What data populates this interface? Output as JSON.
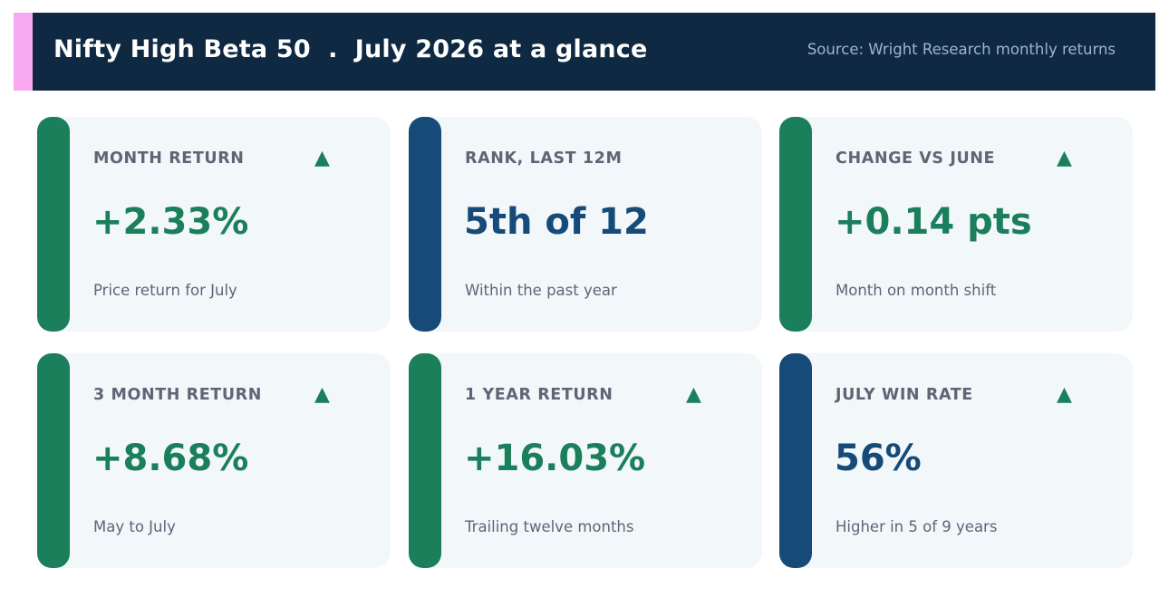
{
  "header": {
    "title": "Nifty High Beta 50  .  July 2026 at a glance",
    "source": "Source: Wright Research monthly returns",
    "background_color": "#0f2942",
    "accent_color": "#f9a8f2"
  },
  "colors": {
    "positive": "#1a7f5a",
    "neutral": "#164a78"
  },
  "chart_data": {
    "type": "table",
    "cards": [
      {
        "label": "MONTH RETURN",
        "value": "+2.33%",
        "note": "Price return for July",
        "tone": "positive",
        "arrow": "▲",
        "icon": "up-arrow-icon"
      },
      {
        "label": "RANK, LAST 12M",
        "value": "5th of 12",
        "note": "Within the past year",
        "tone": "neutral",
        "arrow": "",
        "icon": ""
      },
      {
        "label": "CHANGE VS JUNE",
        "value": "+0.14 pts",
        "note": "Month on month shift",
        "tone": "positive",
        "arrow": "▲",
        "icon": "up-arrow-icon"
      },
      {
        "label": "3 MONTH RETURN",
        "value": "+8.68%",
        "note": "May to July",
        "tone": "positive",
        "arrow": "▲",
        "icon": "up-arrow-icon"
      },
      {
        "label": "1 YEAR RETURN",
        "value": "+16.03%",
        "note": "Trailing twelve months",
        "tone": "positive",
        "arrow": "▲",
        "icon": "up-arrow-icon"
      },
      {
        "label": "JULY WIN RATE",
        "value": "56%",
        "note": "Higher in 5 of 9 years",
        "tone": "neutral",
        "arrow": "▲",
        "icon": "up-arrow-icon"
      }
    ]
  }
}
